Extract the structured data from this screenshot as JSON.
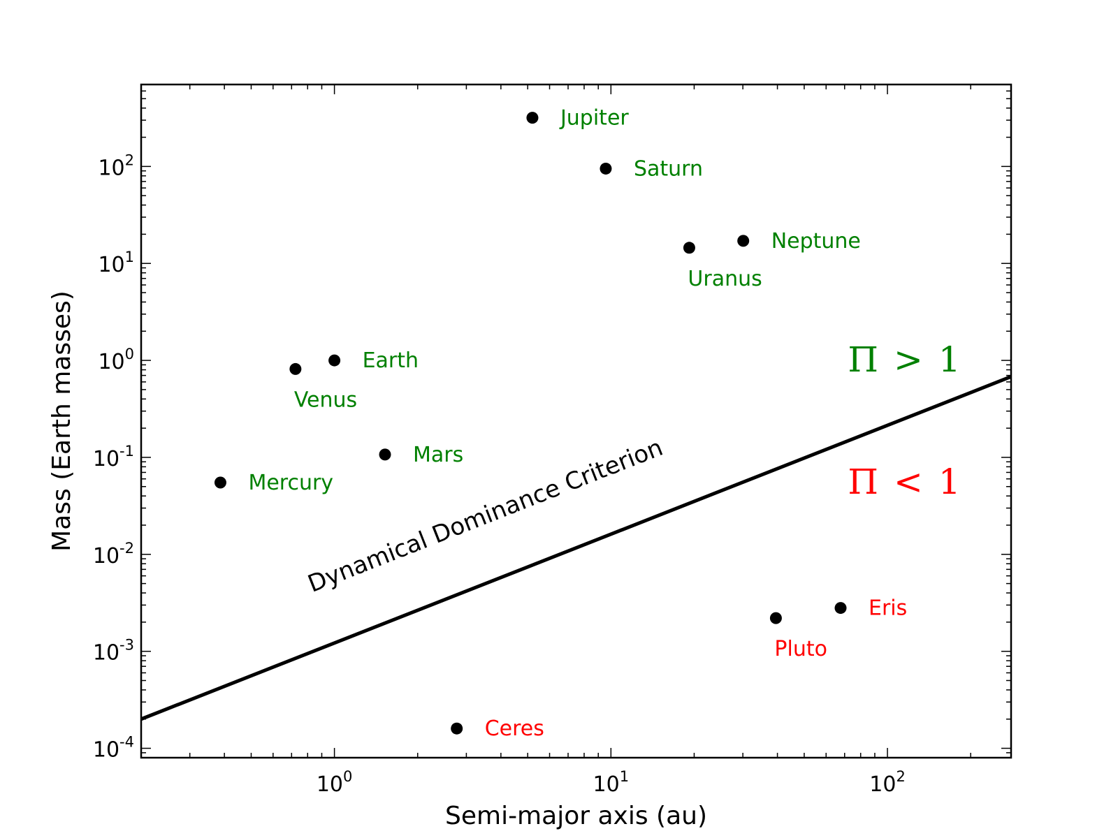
{
  "chart_data": {
    "type": "scatter",
    "title": "",
    "xlabel": "Semi-major axis (au)",
    "ylabel": "Mass (Earth masses)",
    "xscale": "log",
    "yscale": "log",
    "xlim": [
      0.2,
      280
    ],
    "ylim": [
      8e-05,
      700
    ],
    "x_ticks": [
      {
        "base": "10",
        "exp": "0",
        "value": 1
      },
      {
        "base": "10",
        "exp": "1",
        "value": 10
      },
      {
        "base": "10",
        "exp": "2",
        "value": 100
      }
    ],
    "y_ticks": [
      {
        "base": "10",
        "exp": "-4",
        "value": 0.0001
      },
      {
        "base": "10",
        "exp": "-3",
        "value": 0.001
      },
      {
        "base": "10",
        "exp": "-2",
        "value": 0.01
      },
      {
        "base": "10",
        "exp": "-1",
        "value": 0.1
      },
      {
        "base": "10",
        "exp": "0",
        "value": 1
      },
      {
        "base": "10",
        "exp": "1",
        "value": 10
      },
      {
        "base": "10",
        "exp": "2",
        "value": 100
      }
    ],
    "grid": false,
    "points": [
      {
        "name": "Mercury",
        "x": 0.387,
        "y": 0.055,
        "color": "#008000",
        "label_pos": "right"
      },
      {
        "name": "Venus",
        "x": 0.723,
        "y": 0.815,
        "color": "#008000",
        "label_pos": "below"
      },
      {
        "name": "Earth",
        "x": 1.0,
        "y": 1.0,
        "color": "#008000",
        "label_pos": "right"
      },
      {
        "name": "Mars",
        "x": 1.524,
        "y": 0.107,
        "color": "#008000",
        "label_pos": "right"
      },
      {
        "name": "Ceres",
        "x": 2.77,
        "y": 0.00016,
        "color": "#ff0000",
        "label_pos": "right"
      },
      {
        "name": "Jupiter",
        "x": 5.2,
        "y": 318,
        "color": "#008000",
        "label_pos": "right"
      },
      {
        "name": "Saturn",
        "x": 9.58,
        "y": 95,
        "color": "#008000",
        "label_pos": "right"
      },
      {
        "name": "Uranus",
        "x": 19.2,
        "y": 14.5,
        "color": "#008000",
        "label_pos": "below"
      },
      {
        "name": "Neptune",
        "x": 30.1,
        "y": 17.1,
        "color": "#008000",
        "label_pos": "right"
      },
      {
        "name": "Pluto",
        "x": 39.5,
        "y": 0.0022,
        "color": "#ff0000",
        "label_pos": "below"
      },
      {
        "name": "Eris",
        "x": 67.7,
        "y": 0.0028,
        "color": "#ff0000",
        "label_pos": "right"
      }
    ],
    "criterion_line": {
      "label": "Dynamical Dominance Criterion",
      "x": [
        0.2,
        280
      ],
      "y": [
        0.0002,
        0.68
      ],
      "color": "#000000"
    },
    "region_labels": [
      {
        "symbol": "Π",
        "relation": ">",
        "value": "1",
        "color": "#008000",
        "x": 115,
        "y": 1.0
      },
      {
        "symbol": "Π",
        "relation": "<",
        "value": "1",
        "color": "#ff0000",
        "x": 115,
        "y": 0.055
      }
    ]
  }
}
